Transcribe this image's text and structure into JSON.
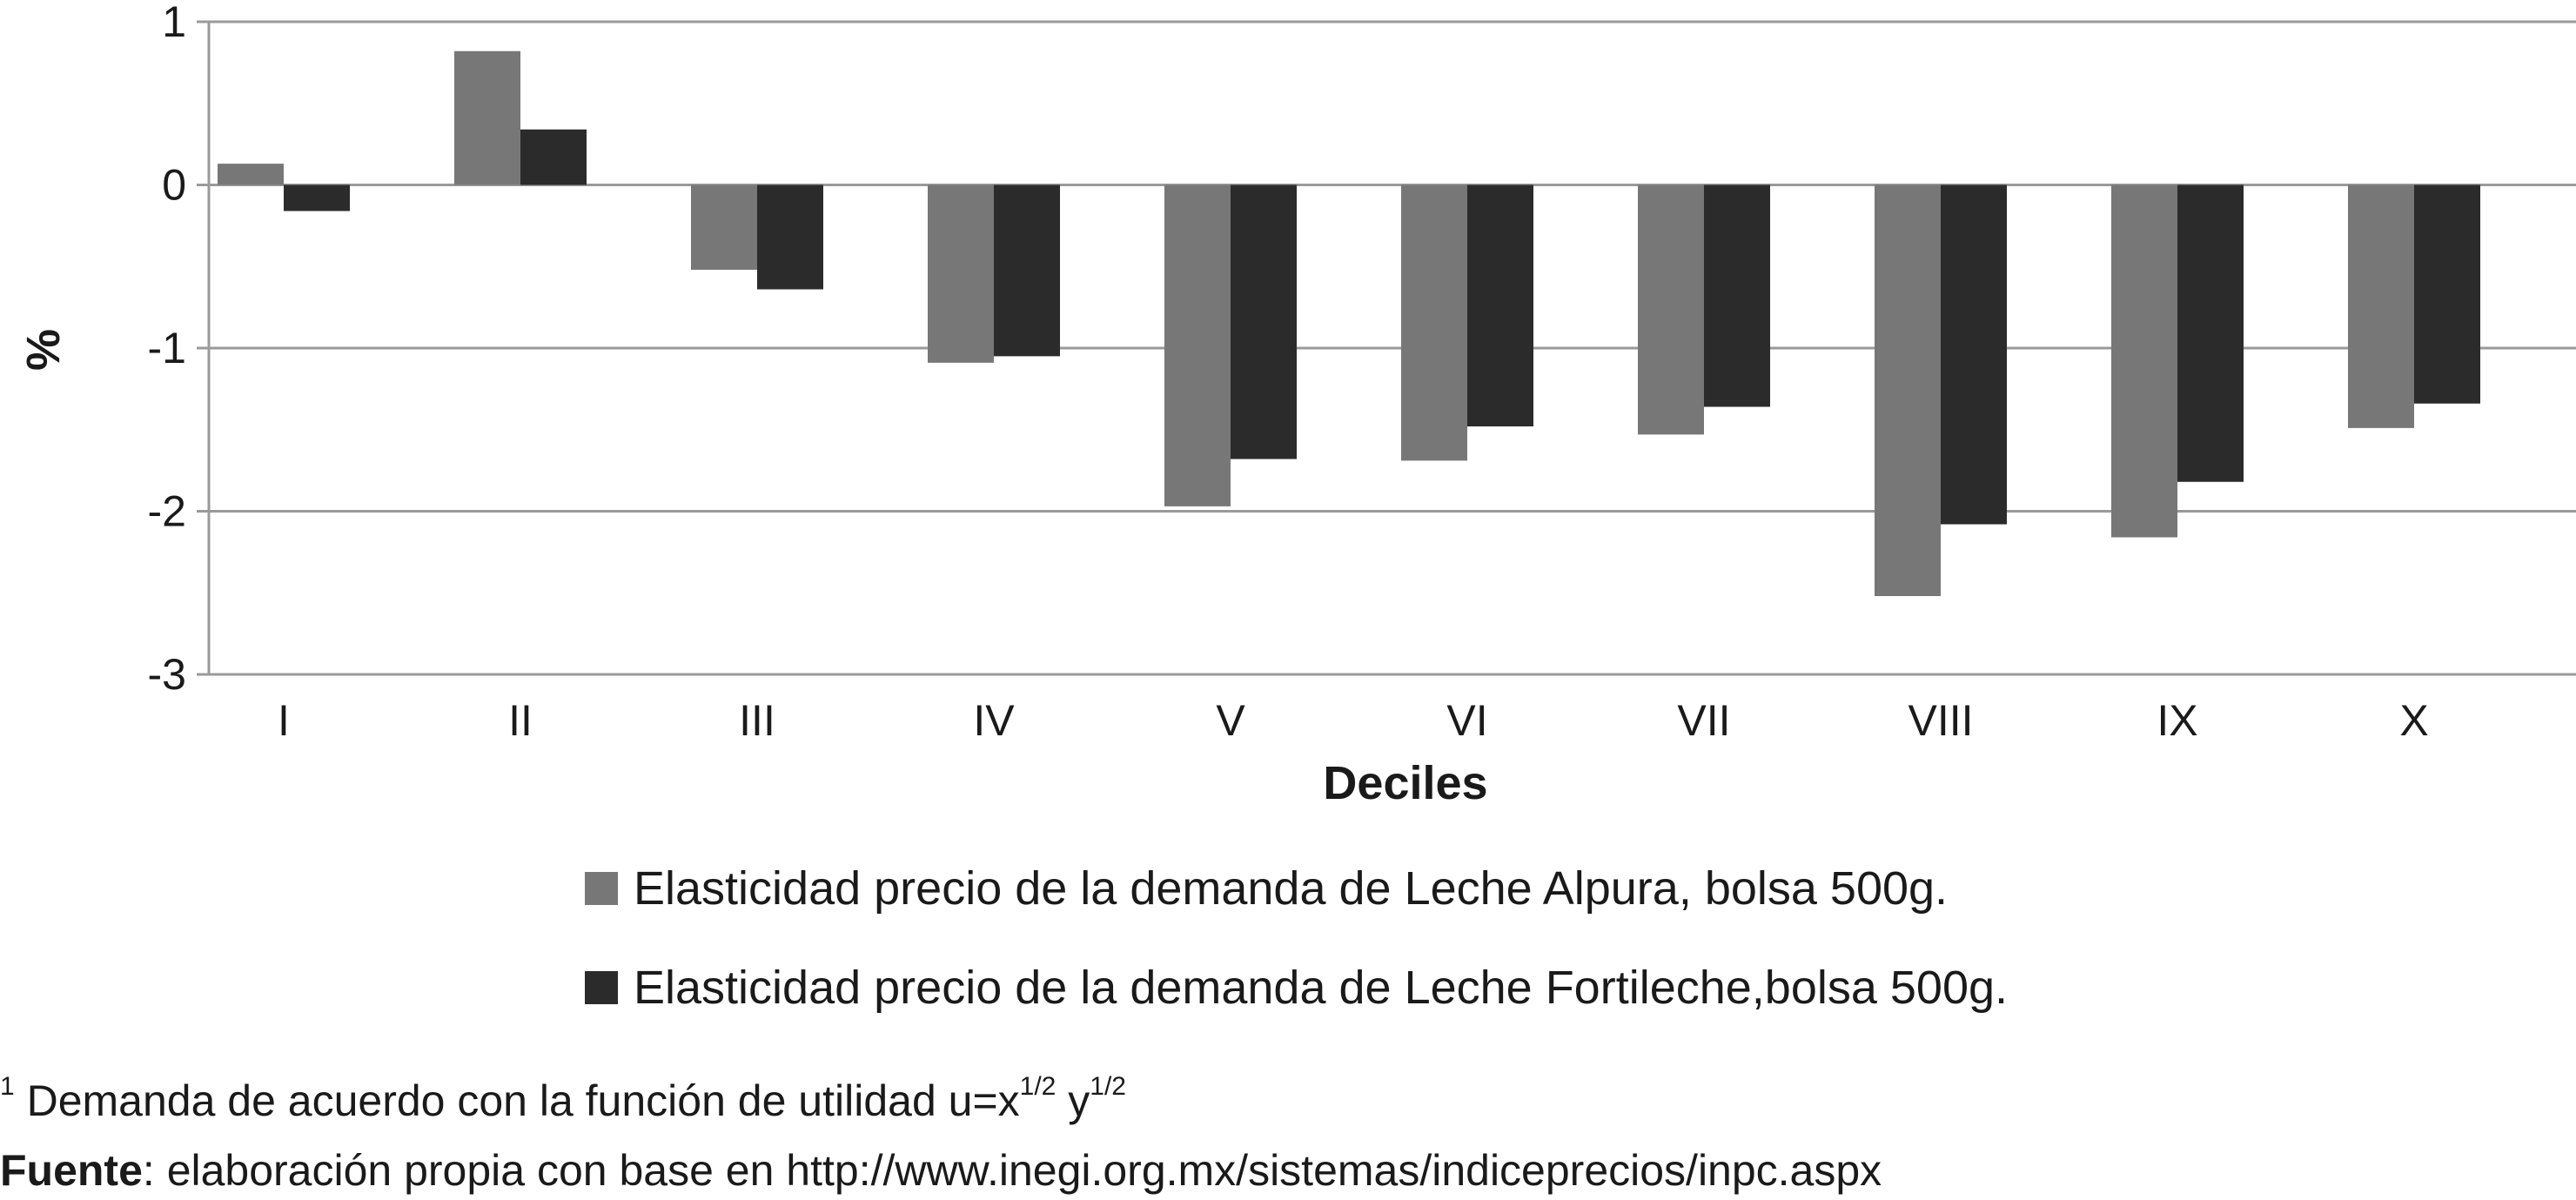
{
  "chart_data": {
    "type": "bar",
    "title": "",
    "xlabel": "Deciles",
    "ylabel": "%",
    "ylim": [
      -3,
      1
    ],
    "yticks": [
      "1",
      "0",
      "-1",
      "-2",
      "-3"
    ],
    "yticks_values": [
      1,
      0,
      -1,
      -2,
      -3
    ],
    "grid": true,
    "legend_position": "bottom",
    "categories": [
      "I",
      "II",
      "III",
      "IV",
      "V",
      "VI",
      "VII",
      "VIII",
      "IX",
      "X"
    ],
    "series": [
      {
        "name": "Elasticidad precio de la demanda de Leche Alpura, bolsa 500g.",
        "color": "#777777",
        "values": [
          0.13,
          0.82,
          -0.52,
          -1.09,
          -1.97,
          -1.69,
          -1.53,
          -2.52,
          -2.16,
          -1.49
        ]
      },
      {
        "name": "Elasticidad precio de la demanda de Leche Fortileche,bolsa 500g.",
        "color": "#2b2b2b",
        "values": [
          -0.16,
          0.34,
          -0.64,
          -1.05,
          -1.68,
          -1.48,
          -1.36,
          -2.08,
          -1.82,
          -1.34
        ]
      }
    ]
  },
  "footnotes": {
    "note1_prefix": "1",
    "note1_text": " Demanda de acuerdo con la función de utilidad u=x",
    "note1_exp1": "1/2",
    "note1_mid": " y",
    "note1_exp2": "1/2",
    "source_label": "Fuente",
    "source_text": ": elaboración propia con base en http://www.inegi.org.mx/sistemas/indiceprecios/inpc.aspx"
  }
}
